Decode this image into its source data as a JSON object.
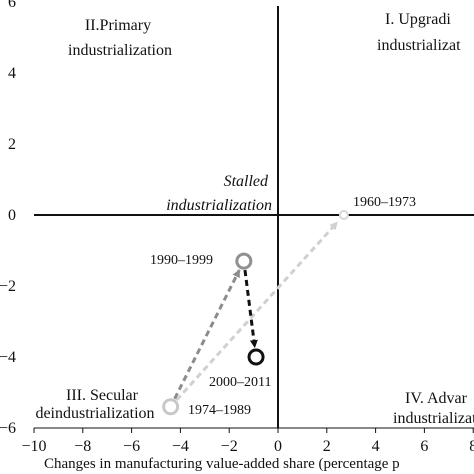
{
  "chart_data": {
    "type": "scatter",
    "title": "",
    "xlabel": "Changes in manufacturing value-added share (percentage p",
    "ylabel": "",
    "xlim": [
      -10,
      8
    ],
    "ylim": [
      -6,
      6
    ],
    "xticks": [
      -10,
      -8,
      -6,
      -4,
      -2,
      0,
      2,
      4,
      6,
      8
    ],
    "yticks": [
      6,
      4,
      2,
      0,
      -2,
      -4,
      -6
    ],
    "x_tick_labels": [
      "−10",
      "−8",
      "−6",
      "−4",
      "−2",
      "0",
      "2",
      "4",
      "6",
      "8"
    ],
    "y_tick_labels": [
      "6",
      "4",
      "2",
      "0",
      "−2",
      "−4",
      "−6"
    ],
    "grid": false,
    "quadrant_labels": [
      {
        "lines": [
          "I. Upgradi",
          "industrializat"
        ]
      },
      {
        "lines": [
          "II.Primary",
          "industrialization"
        ]
      },
      {
        "lines": [
          "III. Secular",
          "deindustrialization"
        ]
      },
      {
        "lines": [
          "IV. Advar",
          "industrializat"
        ]
      }
    ],
    "center_label": [
      "Stalled",
      "industrialization"
    ],
    "points": [
      {
        "label": "1960–1973",
        "x": 2.7,
        "y": 0,
        "color": "#d6d6d6"
      },
      {
        "label": "1974–1989",
        "x": -4.4,
        "y": -5.4,
        "color": "#c8c8c8"
      },
      {
        "label": "1990–1999",
        "x": -1.4,
        "y": -1.3,
        "color": "#909090"
      },
      {
        "label": "2000–2011",
        "x": -0.9,
        "y": -4.0,
        "color": "#111111"
      }
    ],
    "arrows": [
      {
        "from": 1,
        "to": 0,
        "color": "#d0d0d0"
      },
      {
        "from": 1,
        "to": 2,
        "color": "#8c8c8c"
      },
      {
        "from": 2,
        "to": 3,
        "color": "#111111"
      }
    ]
  }
}
